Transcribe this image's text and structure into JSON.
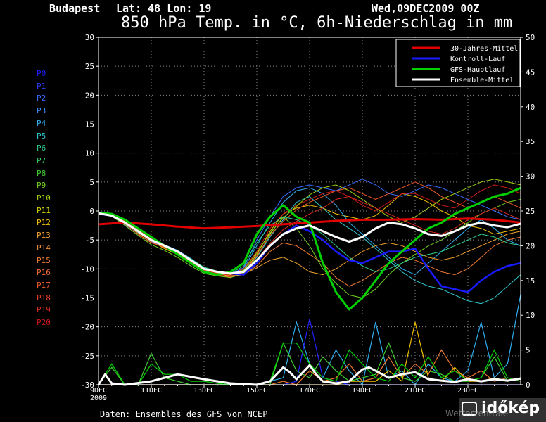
{
  "header": {
    "location": "Budapest",
    "coords": "Lat: 48 Lon: 19",
    "date": "Wed,09DEC2009 00Z",
    "title": "850 hPa Temp. in °C, 6h-Niederschlag in mm"
  },
  "footer": {
    "source": "Daten: Ensembles des GFS von NCEP"
  },
  "logo": {
    "text": "időkép",
    "watermark": "Wetterzentrale"
  },
  "members": [
    {
      "label": "P0",
      "color": "#2020ff"
    },
    {
      "label": "P1",
      "color": "#2a3cff"
    },
    {
      "label": "P2",
      "color": "#3a6cff"
    },
    {
      "label": "P3",
      "color": "#3a90ff"
    },
    {
      "label": "P4",
      "color": "#30b0f0"
    },
    {
      "label": "P5",
      "color": "#30c8d0"
    },
    {
      "label": "P6",
      "color": "#30d090"
    },
    {
      "label": "P7",
      "color": "#30d060"
    },
    {
      "label": "P8",
      "color": "#40d030"
    },
    {
      "label": "P9",
      "color": "#70d020"
    },
    {
      "label": "P10",
      "color": "#a0d010"
    },
    {
      "label": "P11",
      "color": "#d0d000"
    },
    {
      "label": "P12",
      "color": "#f0c000"
    },
    {
      "label": "P13",
      "color": "#f0a030"
    },
    {
      "label": "P14",
      "color": "#f09030"
    },
    {
      "label": "P15",
      "color": "#f07a30"
    },
    {
      "label": "P16",
      "color": "#f06a30"
    },
    {
      "label": "P17",
      "color": "#f05a2a"
    },
    {
      "label": "P18",
      "color": "#f04020"
    },
    {
      "label": "P19",
      "color": "#e02a20"
    },
    {
      "label": "P20",
      "color": "#d01818"
    }
  ],
  "chart_data": {
    "type": "line",
    "x_unit": "days after 09DEC2009 00Z",
    "x_range": [
      0,
      16
    ],
    "x_ticks": [
      {
        "x": 0,
        "label": "9DEC"
      },
      {
        "x": 2,
        "label": "11DEC"
      },
      {
        "x": 4,
        "label": "13DEC"
      },
      {
        "x": 6,
        "label": "15DEC"
      },
      {
        "x": 8,
        "label": "17DEC"
      },
      {
        "x": 10,
        "label": "19DEC"
      },
      {
        "x": 12,
        "label": "21DEC"
      },
      {
        "x": 14,
        "label": "23DEC"
      }
    ],
    "x_year_label": "2009",
    "y_left": {
      "min": -30,
      "max": 30,
      "ticks": [
        30,
        25,
        20,
        15,
        10,
        5,
        0,
        -5,
        -10,
        -15,
        -20,
        -25,
        -30
      ]
    },
    "y_right": {
      "min": 0,
      "max": 50,
      "ticks": [
        50,
        45,
        40,
        35,
        30,
        25,
        20,
        15,
        10,
        5,
        0
      ]
    },
    "grid": true,
    "legend_position": "top-right",
    "legend": [
      {
        "label": "30-Jahres-Mittel",
        "color": "#e00000"
      },
      {
        "label": "Kontroll-Lauf",
        "color": "#1a1aff"
      },
      {
        "label": "GFS-Hauptlauf",
        "color": "#00d000"
      },
      {
        "label": "Ensemble-Mittel",
        "color": "#ffffff"
      }
    ],
    "series": [
      {
        "name": "30-Jahres-Mittel",
        "axis": "left",
        "color": "#e00000",
        "width": 3,
        "x": [
          0,
          1,
          2,
          3,
          4,
          5,
          6,
          7,
          8,
          9,
          10,
          11,
          12,
          13,
          14,
          15,
          16
        ],
        "y": [
          -2.3,
          -2.0,
          -2.3,
          -2.7,
          -3.0,
          -2.8,
          -2.6,
          -2.3,
          -2.0,
          -1.7,
          -1.5,
          -1.5,
          -1.4,
          -1.5,
          -1.3,
          -1.5,
          -2.0
        ]
      },
      {
        "name": "Kontroll-Lauf",
        "axis": "left",
        "color": "#1a1aff",
        "width": 2.5,
        "x": [
          0,
          0.5,
          1,
          1.5,
          2,
          2.5,
          3,
          3.5,
          4,
          4.5,
          5,
          5.5,
          6,
          6.5,
          7,
          7.5,
          8,
          8.5,
          9,
          9.5,
          10,
          10.5,
          11,
          11.5,
          12,
          12.5,
          13,
          13.5,
          14,
          14.5,
          15,
          15.5,
          16
        ],
        "y": [
          -0.5,
          -0.8,
          -2.0,
          -3.5,
          -5.0,
          -6.0,
          -7.0,
          -8.5,
          -10.0,
          -10.5,
          -10.8,
          -11.0,
          -9.0,
          -6.0,
          -4.0,
          -2.5,
          -3.5,
          -5.0,
          -7.0,
          -8.5,
          -9.0,
          -8.0,
          -7.0,
          -7.0,
          -6.5,
          -10.0,
          -13.0,
          -13.5,
          -14.0,
          -12.0,
          -10.5,
          -9.5,
          -9.0
        ]
      },
      {
        "name": "GFS-Hauptlauf",
        "axis": "left",
        "color": "#00d000",
        "width": 3,
        "x": [
          0,
          0.5,
          1,
          1.5,
          2,
          2.5,
          3,
          3.5,
          4,
          4.5,
          5,
          5.5,
          6,
          6.5,
          7,
          7.5,
          8,
          8.5,
          9,
          9.5,
          10,
          10.5,
          11,
          11.5,
          12,
          12.5,
          13,
          13.5,
          14,
          14.5,
          15,
          15.5,
          16
        ],
        "y": [
          -0.3,
          -0.5,
          -1.5,
          -3.0,
          -4.5,
          -6.0,
          -7.5,
          -9.0,
          -10.5,
          -11.0,
          -10.5,
          -9.0,
          -4.0,
          -1.0,
          1.0,
          -1.0,
          -2.0,
          -9.0,
          -14.0,
          -17.0,
          -15.0,
          -12.0,
          -9.0,
          -7.0,
          -5.0,
          -3.0,
          -2.0,
          -0.5,
          0.5,
          1.5,
          2.5,
          3.0,
          4.0
        ]
      },
      {
        "name": "Ensemble-Mittel",
        "axis": "left",
        "color": "#ffffff",
        "width": 3,
        "x": [
          0,
          0.5,
          1,
          1.5,
          2,
          2.5,
          3,
          3.5,
          4,
          4.5,
          5,
          5.5,
          6,
          6.5,
          7,
          7.5,
          8,
          8.5,
          9,
          9.5,
          10,
          10.5,
          11,
          11.5,
          12,
          12.5,
          13,
          13.5,
          14,
          14.5,
          15,
          15.5,
          16
        ],
        "y": [
          -0.4,
          -0.8,
          -2.0,
          -3.5,
          -5.0,
          -6.0,
          -7.0,
          -8.5,
          -10.0,
          -10.5,
          -10.8,
          -10.5,
          -8.5,
          -6.0,
          -4.0,
          -3.0,
          -2.5,
          -3.5,
          -4.5,
          -5.3,
          -4.5,
          -3.0,
          -2.0,
          -2.3,
          -3.0,
          -4.0,
          -4.3,
          -3.5,
          -2.5,
          -2.0,
          -2.5,
          -2.8,
          -2.2
        ]
      },
      {
        "name": "Ensemble-Mittel Niederschlag",
        "axis": "right",
        "color": "#ffffff",
        "width": 3,
        "x": [
          0,
          0.25,
          0.5,
          1,
          2,
          3,
          4,
          5,
          6,
          6.5,
          7,
          7.25,
          7.5,
          8,
          8.25,
          8.5,
          9,
          9.5,
          10,
          10.25,
          10.5,
          11,
          11.5,
          12,
          12.5,
          13,
          13.5,
          14,
          14.5,
          15,
          15.5,
          16
        ],
        "y": [
          0,
          1.5,
          0.2,
          0,
          0.5,
          1.5,
          0.8,
          0.2,
          0,
          0.5,
          2.5,
          1.8,
          0.8,
          2.8,
          1.5,
          0.5,
          0.2,
          0.5,
          2.2,
          2.5,
          2.0,
          1.0,
          1.5,
          1.8,
          0.8,
          0.6,
          0.4,
          0.8,
          0.5,
          0.8,
          0.6,
          0.9
        ]
      }
    ],
    "ensemble_temp_members": [
      {
        "color": "#f0c000",
        "y": [
          -0.5,
          -0.5,
          -1.8,
          -3.5,
          -5.2,
          -6.5,
          -7.5,
          -9.0,
          -10.5,
          -11.0,
          -11.5,
          -10.5,
          -7.5,
          -3.5,
          -0.5,
          0.5,
          1.0,
          0.5,
          -0.5,
          -1.0,
          -1.5,
          -0.8,
          1.0,
          3.0,
          2.5,
          1.5,
          0.0,
          -1.0,
          -2.5,
          -3.0,
          -4.0,
          -3.5,
          -3.0
        ]
      },
      {
        "color": "#f07a30",
        "y": [
          -0.4,
          -0.7,
          -2.2,
          -4.0,
          -5.5,
          -6.2,
          -7.2,
          -8.8,
          -10.2,
          -10.8,
          -11.3,
          -11.0,
          -9.5,
          -7.0,
          -5.5,
          -6.0,
          -7.5,
          -9.0,
          -11.5,
          -13.0,
          -12.0,
          -10.5,
          -9.0,
          -8.0,
          -8.5,
          -9.5,
          -10.5,
          -11.0,
          -10.0,
          -8.0,
          -6.0,
          -5.0,
          -4.5
        ]
      },
      {
        "color": "#30b0f0",
        "y": [
          -0.3,
          -0.9,
          -2.4,
          -3.8,
          -5.0,
          -5.8,
          -6.8,
          -8.2,
          -9.8,
          -10.5,
          -11.0,
          -10.0,
          -6.0,
          -2.0,
          1.5,
          3.5,
          4.0,
          3.0,
          1.0,
          -2.0,
          -4.0,
          -6.0,
          -8.0,
          -10.0,
          -11.0,
          -9.0,
          -7.0,
          -5.0,
          -3.0,
          -1.5,
          -3.0,
          -5.0,
          -6.0
        ]
      },
      {
        "color": "#d01818",
        "y": [
          -0.5,
          -0.6,
          -1.6,
          -3.2,
          -4.8,
          -5.8,
          -7.0,
          -8.6,
          -10.0,
          -10.4,
          -10.8,
          -10.0,
          -7.0,
          -3.0,
          -0.5,
          1.0,
          2.0,
          3.0,
          3.5,
          2.5,
          1.0,
          0.0,
          1.5,
          3.0,
          3.0,
          2.0,
          1.0,
          0.5,
          2.0,
          3.5,
          4.5,
          4.0,
          3.0
        ]
      },
      {
        "color": "#70d020",
        "y": [
          -0.4,
          -0.9,
          -2.5,
          -4.2,
          -5.8,
          -6.8,
          -8.0,
          -9.5,
          -10.8,
          -11.2,
          -11.5,
          -10.8,
          -8.0,
          -4.0,
          -1.0,
          -3.0,
          -6.0,
          -10.0,
          -12.5,
          -14.5,
          -15.0,
          -13.5,
          -11.0,
          -9.0,
          -7.5,
          -6.0,
          -5.0,
          -3.5,
          -2.0,
          -0.5,
          0.5,
          1.5,
          2.0
        ]
      },
      {
        "color": "#3a6cff",
        "y": [
          -0.3,
          -0.6,
          -1.9,
          -3.6,
          -5.3,
          -6.1,
          -7.1,
          -8.5,
          -10.1,
          -10.6,
          -10.9,
          -9.8,
          -5.0,
          -1.0,
          2.5,
          4.0,
          4.5,
          4.0,
          3.5,
          4.5,
          5.5,
          4.5,
          3.0,
          2.5,
          3.5,
          4.5,
          4.0,
          3.0,
          2.0,
          1.0,
          0.0,
          -1.0,
          -1.5
        ]
      },
      {
        "color": "#f0a030",
        "y": [
          -0.5,
          -0.7,
          -2.0,
          -3.6,
          -5.1,
          -6.2,
          -7.3,
          -8.9,
          -10.4,
          -10.9,
          -11.2,
          -10.9,
          -9.8,
          -8.5,
          -8.0,
          -9.0,
          -10.5,
          -11.0,
          -10.0,
          -8.5,
          -7.0,
          -6.0,
          -5.5,
          -6.0,
          -7.0,
          -8.0,
          -8.5,
          -8.0,
          -7.0,
          -6.0,
          -5.0,
          -4.0,
          -3.5
        ]
      },
      {
        "color": "#30c8d0",
        "y": [
          -0.4,
          -0.8,
          -2.1,
          -3.4,
          -4.9,
          -6.0,
          -7.1,
          -8.4,
          -9.9,
          -10.5,
          -10.9,
          -10.3,
          -8.0,
          -4.5,
          -1.5,
          1.5,
          2.5,
          0.5,
          -1.5,
          -3.0,
          -4.5,
          -6.5,
          -8.5,
          -10.5,
          -12.0,
          -13.0,
          -13.5,
          -14.5,
          -15.5,
          -16.0,
          -15.0,
          -13.0,
          -11.0
        ]
      },
      {
        "color": "#f05a2a",
        "y": [
          -0.5,
          -0.8,
          -2.3,
          -3.9,
          -5.4,
          -6.3,
          -7.4,
          -9.1,
          -10.6,
          -11.1,
          -11.4,
          -10.6,
          -7.8,
          -4.2,
          -1.8,
          0.2,
          1.5,
          2.5,
          3.5,
          4.0,
          3.0,
          2.0,
          3.0,
          4.0,
          5.0,
          4.0,
          2.5,
          1.5,
          0.5,
          1.5,
          2.5,
          1.5,
          0.5
        ]
      },
      {
        "color": "#a0d010",
        "y": [
          -0.4,
          -0.7,
          -2.0,
          -3.7,
          -5.2,
          -6.0,
          -7.0,
          -8.7,
          -10.3,
          -10.7,
          -11.0,
          -10.2,
          -7.2,
          -3.8,
          -1.2,
          0.8,
          2.8,
          4.0,
          4.5,
          3.5,
          2.0,
          0.5,
          -1.0,
          -2.0,
          -1.0,
          0.5,
          2.0,
          3.0,
          4.0,
          5.0,
          5.5,
          5.0,
          4.5
        ]
      },
      {
        "color": "#30d090",
        "y": [
          -0.3,
          -0.8,
          -2.2,
          -3.5,
          -4.9,
          -5.9,
          -6.9,
          -8.3,
          -9.7,
          -10.4,
          -10.8,
          -9.5,
          -5.5,
          -2.5,
          -1.0,
          -1.5,
          -2.5,
          -4.0,
          -6.0,
          -8.0,
          -9.5,
          -10.5,
          -10.0,
          -9.0,
          -8.0,
          -7.5,
          -7.0,
          -6.0,
          -5.0,
          -4.0,
          -4.5,
          -5.5,
          -6.0
        ]
      },
      {
        "color": "#e02a20",
        "y": [
          -0.5,
          -0.6,
          -1.7,
          -3.3,
          -4.9,
          -5.9,
          -7.0,
          -8.7,
          -10.2,
          -10.8,
          -11.1,
          -10.4,
          -8.4,
          -5.6,
          -3.2,
          -1.8,
          -0.5,
          0.5,
          2.0,
          2.5,
          1.5,
          0.5,
          -0.5,
          -1.5,
          -2.5,
          -3.5,
          -4.0,
          -3.0,
          -1.5,
          -0.5,
          0.5,
          -0.5,
          -1.5
        ]
      }
    ],
    "precip_members": [
      {
        "color": "#30b0f0",
        "y": [
          0,
          0,
          0,
          0,
          0,
          0,
          0,
          0,
          0,
          0,
          0,
          0,
          0,
          0.5,
          1.0,
          9.0,
          3.0,
          1.0,
          5.0,
          2.0,
          0.0,
          9.0,
          1.0,
          2.0,
          0.0,
          3.0,
          1.0,
          0.5,
          2.0,
          9.0,
          1.0,
          3.0,
          13.0
        ]
      },
      {
        "color": "#f07a30",
        "y": [
          0,
          0,
          0,
          0,
          0,
          0,
          0,
          0,
          0,
          0,
          0,
          0,
          0,
          0,
          0.5,
          0.0,
          2.0,
          0.5,
          1.0,
          3.0,
          0.5,
          1.0,
          4.0,
          1.0,
          3.0,
          1.5,
          5.0,
          2.0,
          1.0,
          2.0,
          0.5,
          1.0,
          0.5
        ]
      },
      {
        "color": "#40d030",
        "y": [
          0,
          2.5,
          0,
          0,
          4.5,
          1.0,
          0.5,
          0.0,
          0,
          0,
          0,
          0,
          0,
          0,
          6.0,
          2.0,
          1.0,
          4.0,
          2.0,
          0.5,
          1.0,
          1.5,
          6.0,
          1.0,
          0.5,
          2.0,
          1.5,
          0.5,
          0.5,
          1.0,
          4.0,
          0.5,
          1.0
        ]
      },
      {
        "color": "#2020ff",
        "y": [
          0,
          0,
          0,
          0,
          0,
          0,
          0,
          0,
          0,
          0,
          0,
          0,
          0,
          0,
          0,
          0.5,
          9.5,
          1.0,
          0.5,
          0,
          0,
          0,
          0,
          0,
          0,
          0,
          0,
          0,
          0,
          0,
          0,
          0,
          0
        ]
      },
      {
        "color": "#f0c000",
        "y": [
          0,
          0,
          0,
          0,
          0,
          0,
          0,
          0,
          0,
          0,
          0,
          0,
          0,
          0,
          0,
          0,
          0,
          0,
          0,
          0.5,
          0.5,
          0.5,
          2.0,
          0.5,
          9.0,
          1.0,
          0.5,
          2.5,
          0.5,
          0.5,
          1.0,
          0.5,
          1.0
        ]
      },
      {
        "color": "#00d000",
        "y": [
          0,
          3.0,
          0,
          0,
          3.0,
          1.5,
          1.5,
          0.5,
          0.5,
          0.2,
          0,
          0,
          0,
          0.5,
          6.0,
          6.0,
          3.0,
          1.0,
          0.5,
          5.0,
          3.0,
          1.0,
          0.5,
          3.0,
          1.0,
          4.0,
          1.0,
          2.0,
          0.5,
          1.0,
          5.0,
          1.0,
          0.5
        ]
      }
    ]
  }
}
